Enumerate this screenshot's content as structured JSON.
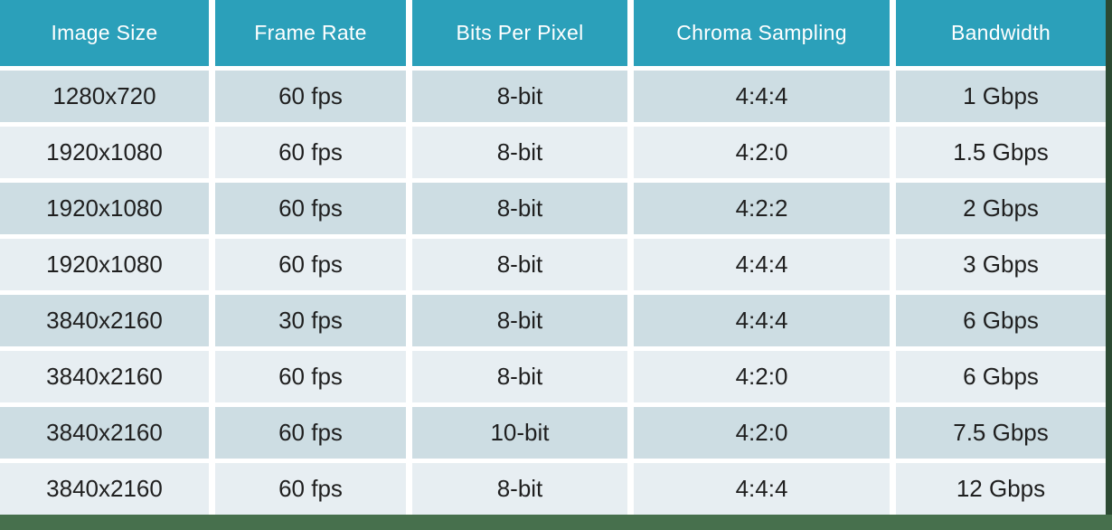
{
  "chart_data": {
    "type": "table",
    "columns": [
      "Image Size",
      "Frame Rate",
      "Bits Per Pixel",
      "Chroma Sampling",
      "Bandwidth"
    ],
    "rows": [
      [
        "1280x720",
        "60 fps",
        "8-bit",
        "4:4:4",
        "1 Gbps"
      ],
      [
        "1920x1080",
        "60 fps",
        "8-bit",
        "4:2:0",
        "1.5 Gbps"
      ],
      [
        "1920x1080",
        "60 fps",
        "8-bit",
        "4:2:2",
        "2 Gbps"
      ],
      [
        "1920x1080",
        "60 fps",
        "8-bit",
        "4:4:4",
        "3 Gbps"
      ],
      [
        "3840x2160",
        "30 fps",
        "8-bit",
        "4:4:4",
        "6 Gbps"
      ],
      [
        "3840x2160",
        "60 fps",
        "8-bit",
        "4:2:0",
        "6 Gbps"
      ],
      [
        "3840x2160",
        "60 fps",
        "10-bit",
        "4:2:0",
        "7.5 Gbps"
      ],
      [
        "3840x2160",
        "60 fps",
        "8-bit",
        "4:4:4",
        "12 Gbps"
      ]
    ]
  },
  "table": {
    "columns": [
      {
        "label": "Image Size"
      },
      {
        "label": "Frame Rate"
      },
      {
        "label": "Bits Per Pixel"
      },
      {
        "label": "Chroma Sampling"
      },
      {
        "label": "Bandwidth"
      }
    ],
    "rows": [
      {
        "cells": [
          "1280x720",
          "60 fps",
          "8-bit",
          "4:4:4",
          "1 Gbps"
        ]
      },
      {
        "cells": [
          "1920x1080",
          "60 fps",
          "8-bit",
          "4:2:0",
          "1.5 Gbps"
        ]
      },
      {
        "cells": [
          "1920x1080",
          "60 fps",
          "8-bit",
          "4:2:2",
          "2 Gbps"
        ]
      },
      {
        "cells": [
          "1920x1080",
          "60 fps",
          "8-bit",
          "4:4:4",
          "3 Gbps"
        ]
      },
      {
        "cells": [
          "3840x2160",
          "30 fps",
          "8-bit",
          "4:4:4",
          "6 Gbps"
        ]
      },
      {
        "cells": [
          "3840x2160",
          "60 fps",
          "8-bit",
          "4:2:0",
          "6 Gbps"
        ]
      },
      {
        "cells": [
          "3840x2160",
          "60 fps",
          "10-bit",
          "4:2:0",
          "7.5 Gbps"
        ]
      },
      {
        "cells": [
          "3840x2160",
          "60 fps",
          "8-bit",
          "4:4:4",
          "12 Gbps"
        ]
      }
    ]
  },
  "colors": {
    "header_bg": "#2ba0ba",
    "header_text": "#ffffff",
    "row_dark": "#cddde3",
    "row_light": "#e7eef2",
    "cell_text": "#1f1f1f",
    "footer_bar": "#47704d",
    "edge_strip": "#2c4a33",
    "gap": "#ffffff"
  }
}
